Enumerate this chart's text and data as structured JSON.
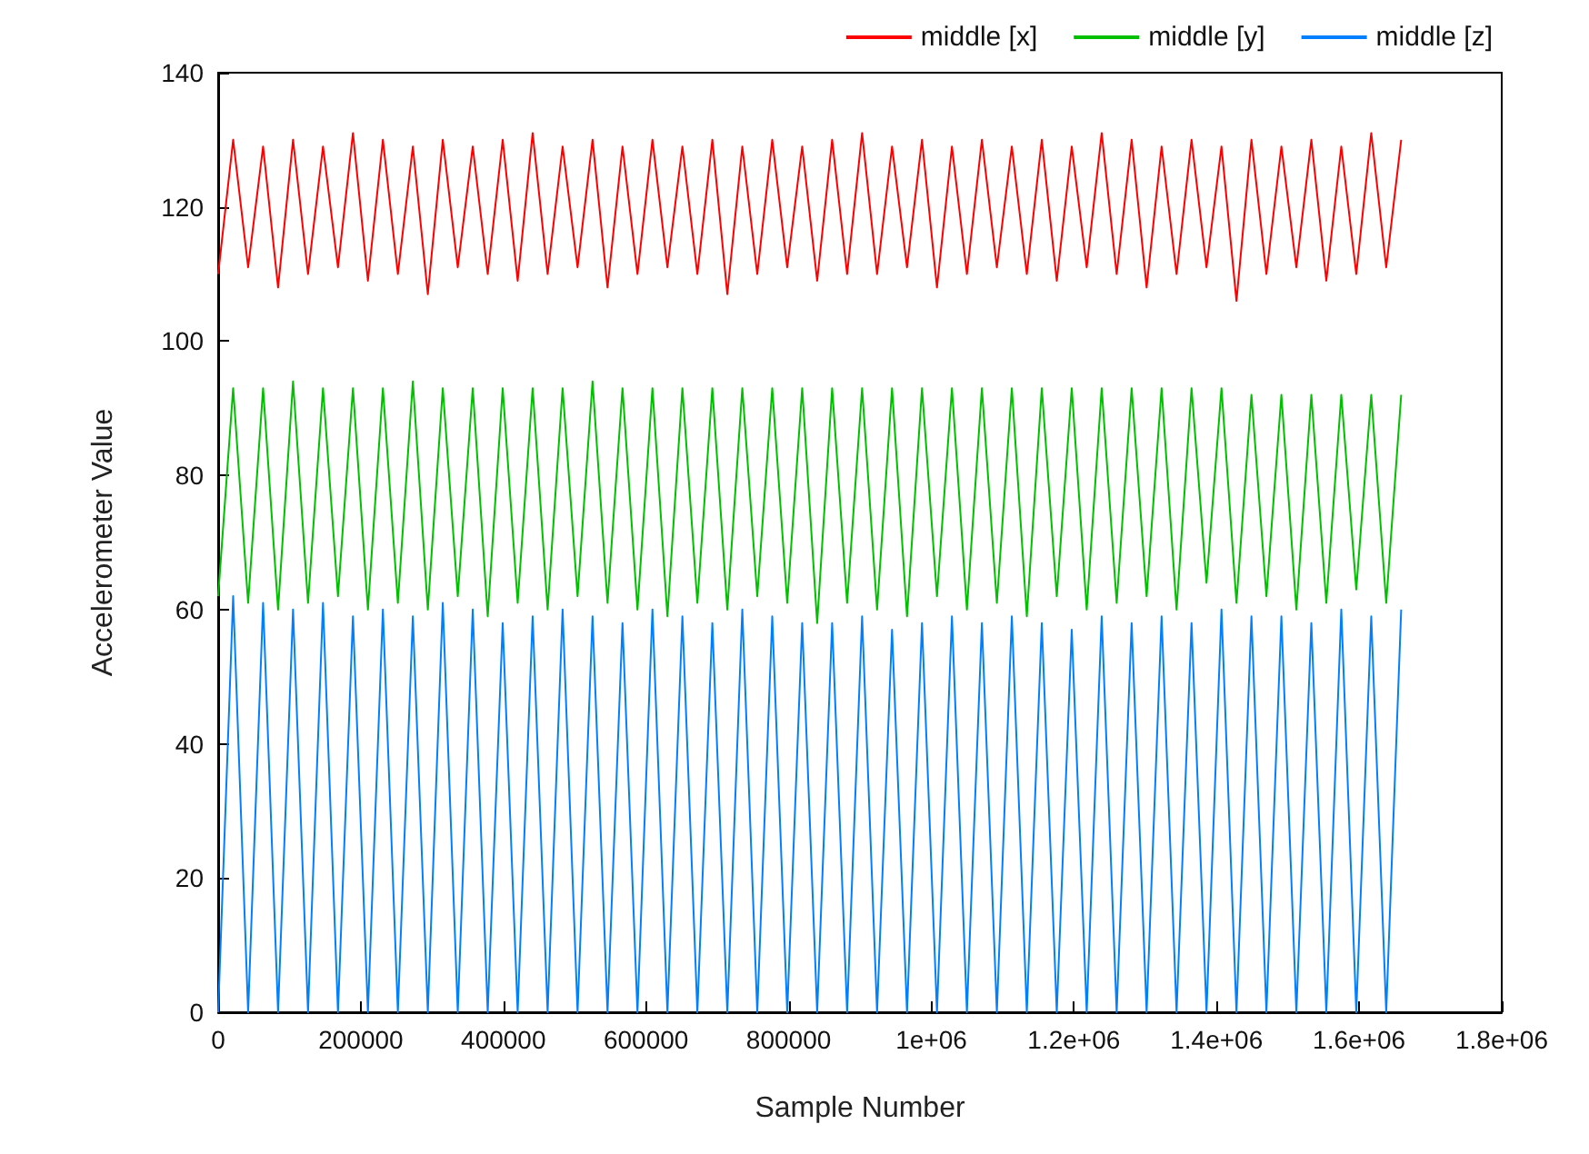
{
  "chart_data": {
    "type": "line",
    "xlabel": "Sample Number",
    "ylabel": "Accelerometer Value",
    "x": [
      0,
      21000,
      42000,
      63000,
      84000,
      105000,
      126000,
      147000,
      168000,
      189000,
      210000,
      231000,
      252000,
      273000,
      294000,
      315000,
      336000,
      357000,
      378000,
      399000,
      420000,
      441000,
      462000,
      483000,
      504000,
      525000,
      546000,
      567000,
      588000,
      609000,
      630000,
      651000,
      672000,
      693000,
      714000,
      735000,
      756000,
      777000,
      798000,
      819000,
      840000,
      861000,
      882000,
      903000,
      924000,
      945000,
      966000,
      987000,
      1008000,
      1029000,
      1050000,
      1071000,
      1092000,
      1113000,
      1134000,
      1155000,
      1176000,
      1197000,
      1218000,
      1239000,
      1260000,
      1281000,
      1302000,
      1323000,
      1344000,
      1365000,
      1386000,
      1407000,
      1428000,
      1449000,
      1470000,
      1491000,
      1512000,
      1533000,
      1554000,
      1575000,
      1596000,
      1617000,
      1638000,
      1659000
    ],
    "series": [
      {
        "name": "middle [x]",
        "color": "#ff0000",
        "values": [
          110,
          130,
          111,
          129,
          108,
          130,
          110,
          129,
          111,
          131,
          109,
          130,
          110,
          129,
          107,
          130,
          111,
          129,
          110,
          130,
          109,
          131,
          110,
          129,
          111,
          130,
          108,
          129,
          110,
          130,
          111,
          129,
          110,
          130,
          107,
          129,
          110,
          130,
          111,
          129,
          109,
          130,
          110,
          131,
          110,
          129,
          111,
          130,
          108,
          129,
          110,
          130,
          111,
          129,
          110,
          130,
          109,
          129,
          111,
          131,
          110,
          130,
          108,
          129,
          110,
          130,
          111,
          129,
          106,
          130,
          110,
          129,
          111,
          130,
          109,
          129,
          110,
          131,
          111,
          130
        ]
      },
      {
        "name": "middle [y]",
        "color": "#00c000",
        "values": [
          62,
          93,
          61,
          93,
          60,
          94,
          61,
          93,
          62,
          93,
          60,
          93,
          61,
          94,
          60,
          93,
          62,
          93,
          59,
          93,
          61,
          93,
          60,
          93,
          62,
          94,
          61,
          93,
          60,
          93,
          59,
          93,
          61,
          93,
          60,
          93,
          62,
          93,
          61,
          93,
          58,
          93,
          61,
          93,
          60,
          93,
          59,
          93,
          62,
          93,
          60,
          93,
          61,
          93,
          59,
          93,
          62,
          93,
          60,
          93,
          61,
          93,
          62,
          93,
          60,
          93,
          64,
          93,
          61,
          92,
          62,
          92,
          60,
          92,
          61,
          92,
          63,
          92,
          61,
          92
        ]
      },
      {
        "name": "middle [z]",
        "color": "#0080ff",
        "values": [
          0,
          62,
          0,
          61,
          0,
          60,
          0,
          61,
          0,
          59,
          0,
          60,
          0,
          59,
          0,
          61,
          0,
          60,
          0,
          58,
          0,
          59,
          0,
          60,
          0,
          59,
          0,
          58,
          0,
          60,
          0,
          59,
          0,
          58,
          0,
          60,
          0,
          59,
          0,
          58,
          0,
          58,
          0,
          59,
          0,
          57,
          0,
          58,
          0,
          59,
          0,
          58,
          0,
          59,
          0,
          58,
          0,
          57,
          0,
          59,
          0,
          58,
          0,
          59,
          0,
          58,
          0,
          60,
          0,
          59,
          0,
          59,
          0,
          58,
          0,
          60,
          0,
          59,
          0,
          60
        ]
      }
    ],
    "xlim": [
      0,
      1800000
    ],
    "xticks": [
      0,
      200000,
      400000,
      600000,
      800000,
      {
        "value": 1000000,
        "label": "1e+06"
      },
      {
        "value": 1200000,
        "label": "1.2e+06"
      },
      {
        "value": 1400000,
        "label": "1.4e+06"
      },
      {
        "value": 1600000,
        "label": "1.6e+06"
      },
      {
        "value": 1800000,
        "label": "1.8e+06"
      }
    ],
    "ylim": [
      0,
      140
    ],
    "yticks": [
      0,
      20,
      40,
      60,
      80,
      100,
      120,
      140
    ],
    "grid": false,
    "legend": "top right",
    "marker": "none",
    "line_style": "solid"
  }
}
